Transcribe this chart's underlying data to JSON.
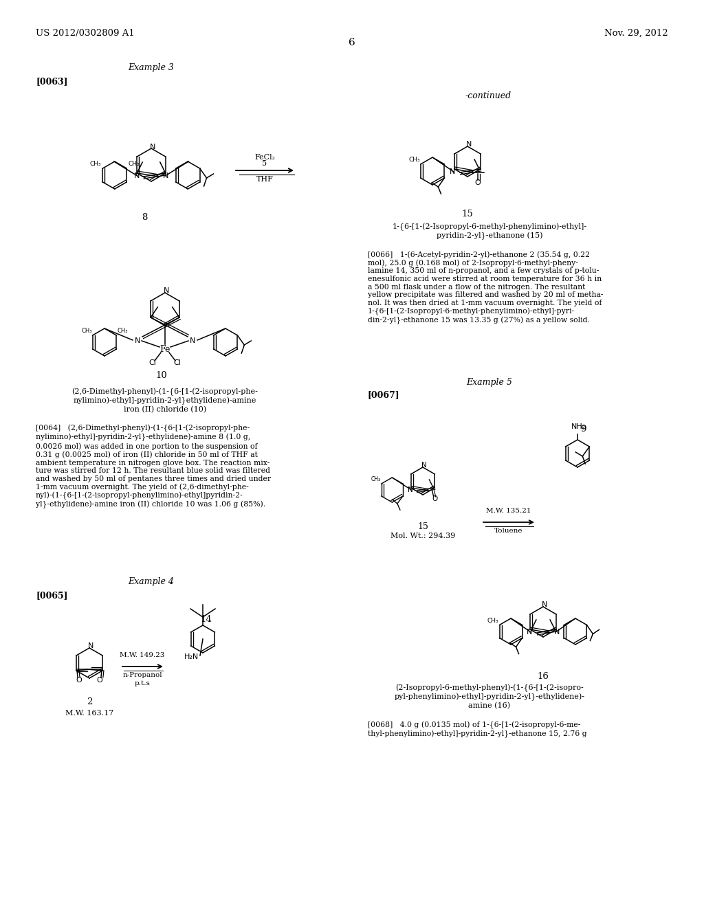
{
  "bg_color": "#ffffff",
  "header_left": "US 2012/0302809 A1",
  "header_right": "Nov. 29, 2012",
  "page_number": "6",
  "continued_text": "-continued",
  "example3_label": "Example 3",
  "example4_label": "Example 4",
  "example5_label": "Example 5",
  "para0063": "[0063]",
  "para0064_body": "[0064]   (2,6-Dimethyl-phenyl)-(1-{6-[1-(2-isopropyl-phe-\nnylimino)-ethyl]-pyridin-2-yl}-ethylidene)-amine 8 (1.0 g,\n0.0026 mol) was added in one portion to the suspension of\n0.31 g (0.0025 mol) of iron (II) chloride in 50 ml of THF at\nambient temperature in nitrogen glove box. The reaction mix-\nture was stirred for 12 h. The resultant blue solid was filtered\nand washed by 50 ml of pentanes three times and dried under\n1-mm vacuum overnight. The yield of (2,6-dimethyl-phe-\nnyl)-(1-{6-[1-(2-isopropyl-phenylimino)-ethyl]pyridin-2-\nyl}-ethylidene)-amine iron (II) chloride 10 was 1.06 g (85%).",
  "comp10_name": "(2,6-Dimethyl-phenyl)-(1-{6-[1-(2-isopropyl-phe-\nnylimino)-ethyl]-pyridin-2-yl}ethylidene)-amine\niron (II) chloride (10)",
  "para0065": "[0065]",
  "para0066_title": "1-{6-[1-(2-Isopropyl-6-methyl-phenylimino)-ethyl]-\npyridin-2-yl}-ethanone (15)",
  "para0066_body": "[0066]   1-(6-Acetyl-pyridin-2-yl)-ethanone 2 (35.54 g, 0.22\nmol), 25.0 g (0.168 mol) of 2-Isopropyl-6-methyl-pheny-\nlamine 14, 350 ml of n-propanol, and a few crystals of p-tolu-\nenesulfonic acid were stirred at room temperature for 36 h in\na 500 ml flask under a flow of the nitrogen. The resultant\nyellow precipitate was filtered and washed by 20 ml of metha-\nnol. It was then dried at 1-mm vacuum overnight. The yield of\n1-{6-[1-(2-Isopropyl-6-methyl-phenylimino)-ethyl]-pyri-\ndin-2-yl}-ethanone 15 was 13.35 g (27%) as a yellow solid.",
  "para0067": "[0067]",
  "para0068_title": "(2-Isopropyl-6-methyl-phenyl)-(1-{6-[1-(2-isopro-\npyl-phenylimino)-ethyl]-pyridin-2-yl}-ethylidene)-\namine (16)",
  "para0068_body": "[0068]   4.0 g (0.0135 mol) of 1-{6-[1-(2-isopropyl-6-me-\nthyl-phenylimino)-ethyl]-pyridin-2-yl}-ethanone 15, 2.76 g",
  "mw_2": "M.W. 163.17",
  "mw_14": "M.W. 149.23",
  "mw_15": "Mol. Wt.: 294.39",
  "mw_9": "M.W. 135.21"
}
